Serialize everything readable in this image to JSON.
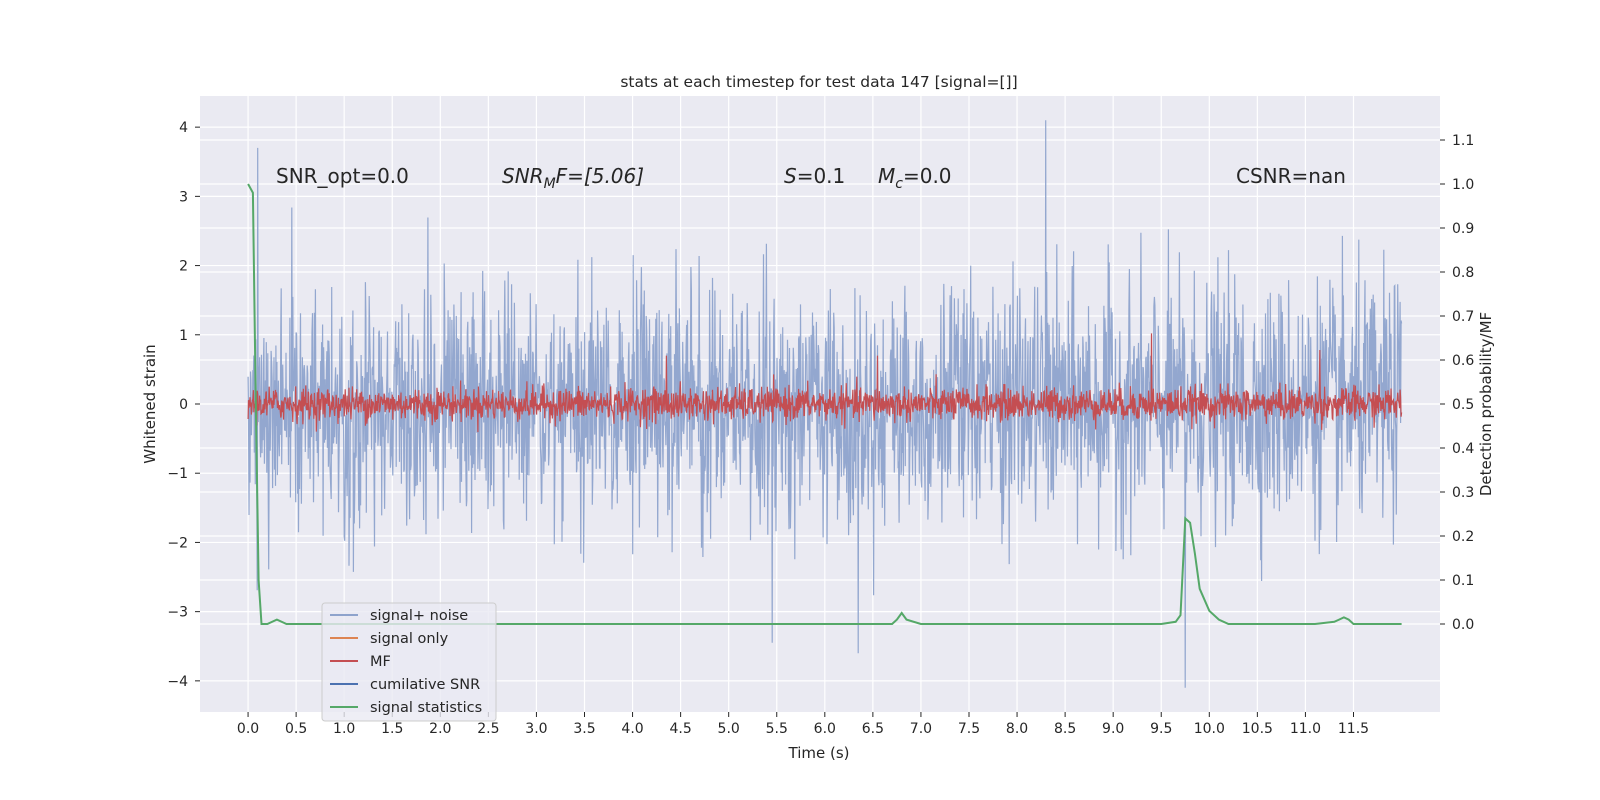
{
  "chart_data": {
    "type": "line",
    "title": "stats at each timestep for test data 147 [signal=[]]",
    "xlabel": "Time (s)",
    "ylabel": "Whitened strain",
    "ylabel_right": "Detection probability/MF",
    "xlim": [
      -0.5,
      12.4
    ],
    "ylim": [
      -4.45,
      4.45
    ],
    "ylim_right": [
      -0.2,
      1.2
    ],
    "xticks": [
      "0.0",
      "0.5",
      "1.0",
      "1.5",
      "2.0",
      "2.5",
      "3.0",
      "3.5",
      "4.0",
      "4.5",
      "5.0",
      "5.5",
      "6.0",
      "6.5",
      "7.0",
      "7.5",
      "8.0",
      "8.5",
      "9.0",
      "9.5",
      "10.0",
      "10.5",
      "11.0",
      "11.5"
    ],
    "yticks": [
      "4",
      "3",
      "2",
      "1",
      "0",
      "−1",
      "−2",
      "−3",
      "−4"
    ],
    "yticks_right": [
      "1.1",
      "1.0",
      "0.9",
      "0.8",
      "0.7",
      "0.6",
      "0.5",
      "0.4",
      "0.3",
      "0.2",
      "0.1",
      "0.0"
    ],
    "grid": true,
    "legend_position": "lower-left",
    "legend": [
      "signal+ noise",
      "signal only",
      "MF",
      "cumilative SNR",
      "signal statistics"
    ],
    "colors": {
      "noise": "#8ea3cc",
      "signal_only": "#dd8452",
      "mf": "#c44e52",
      "cumulative_snr": "#4c72b0",
      "statistics": "#55a868",
      "axes_bg": "#eaeaf2"
    },
    "annotations": {
      "snr_opt": "SNR_opt=0.0",
      "snr_mf_base": "SNR",
      "snr_mf_sub": "M",
      "snr_mf_rest": "F=[5.06]",
      "s_label": "S",
      "s_value": "=0.1",
      "mc_label": "M",
      "mc_sub": "c",
      "mc_value": "=0.0",
      "csnr": "CSNR=nan"
    },
    "series": [
      {
        "name": "signal+ noise",
        "axis": "left",
        "t_range": [
          0.0,
          12.0
        ],
        "std": 0.85,
        "notable_peaks": [
          [
            0.1,
            3.7
          ],
          [
            8.3,
            4.1
          ],
          [
            9.75,
            -4.1
          ],
          [
            6.35,
            -3.6
          ],
          [
            5.45,
            -3.45
          ]
        ]
      },
      {
        "name": "MF",
        "axis": "left",
        "t_range": [
          0.0,
          12.0
        ],
        "std": 0.12,
        "notable_peaks": [
          [
            9.4,
            1.02
          ],
          [
            11.15,
            0.78
          ],
          [
            6.55,
            0.7
          ],
          [
            4.35,
            0.7
          ]
        ]
      },
      {
        "name": "signal statistics",
        "axis": "right",
        "x": [
          0.0,
          0.05,
          0.08,
          0.11,
          0.14,
          0.2,
          0.3,
          0.4,
          0.5,
          4.0,
          4.3,
          5.0,
          6.7,
          6.75,
          6.8,
          6.85,
          7.0,
          7.2,
          8.0,
          9.5,
          9.65,
          9.7,
          9.75,
          9.8,
          9.85,
          9.9,
          10.0,
          10.1,
          10.2,
          11.1,
          11.3,
          11.35,
          11.4,
          11.45,
          11.5,
          12.0
        ],
        "y": [
          1.0,
          0.98,
          0.5,
          0.1,
          0.0,
          0.0,
          0.01,
          0.0,
          0.0,
          0.0,
          0.0,
          0.0,
          0.0,
          0.01,
          0.025,
          0.01,
          0.0,
          0.0,
          0.0,
          0.0,
          0.005,
          0.02,
          0.24,
          0.23,
          0.16,
          0.08,
          0.03,
          0.01,
          0.0,
          0.0,
          0.005,
          0.01,
          0.015,
          0.01,
          0.0,
          0.0
        ]
      }
    ]
  }
}
